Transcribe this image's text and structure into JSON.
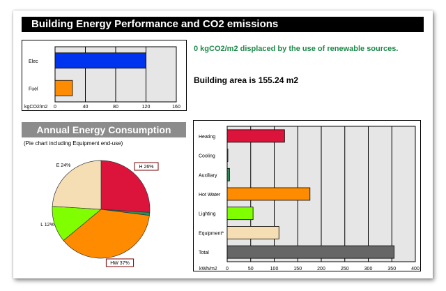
{
  "title": "Building Energy Performance and CO2 emissions",
  "renewable_text": "0 kgCO2/m2 displaced by the use of renewable sources.",
  "area_text": "Building area is 155.24 m2",
  "section_title": "Annual Energy Consumption",
  "pie_note": "(Pie chart including Equipment end-use)",
  "chart_data": [
    {
      "type": "bar",
      "orientation": "horizontal",
      "categories": [
        "Elec",
        "Fuel"
      ],
      "values": [
        120,
        23
      ],
      "colors": [
        "#0033ee",
        "#ff8c00"
      ],
      "xlabel": "kgCO2/m2",
      "xlim": [
        0,
        160
      ],
      "ticks": [
        "0",
        "40",
        "80",
        "120",
        "160"
      ],
      "tick_values": [
        0,
        40,
        80,
        120,
        160
      ],
      "grid": true
    },
    {
      "type": "bar",
      "orientation": "horizontal",
      "categories": [
        "Heating",
        "Cooling",
        "Auxiliary",
        "Hot Water",
        "Lighting",
        "Equipment*",
        "Total"
      ],
      "values": [
        122,
        0,
        5,
        176,
        55,
        110,
        355
      ],
      "colors": [
        "#dc143c",
        "#a6c8e8",
        "#2e8b57",
        "#ff8c00",
        "#7fff00",
        "#f5deb3",
        "#666666"
      ],
      "xlabel": "kWh/m2",
      "xlim": [
        0,
        400
      ],
      "ticks": [
        "0",
        "50",
        "100",
        "150",
        "200",
        "250",
        "300",
        "350",
        "400"
      ],
      "tick_values": [
        0,
        50,
        100,
        150,
        200,
        250,
        300,
        350,
        400
      ],
      "grid": true
    },
    {
      "type": "pie",
      "slices": [
        {
          "name": "Heating",
          "label": "H 26%",
          "value": 26,
          "color": "#dc143c",
          "boxed": true
        },
        {
          "name": "Auxiliary",
          "label": "",
          "value": 1,
          "color": "#2e8b57",
          "boxed": false
        },
        {
          "name": "Hot Water",
          "label": "HW 37%",
          "value": 37,
          "color": "#ff8c00",
          "boxed": true
        },
        {
          "name": "Lighting",
          "label": "L 12%",
          "value": 12,
          "color": "#7fff00",
          "boxed": false
        },
        {
          "name": "Equipment",
          "label": "E 24%",
          "value": 24,
          "color": "#f5deb3",
          "boxed": false
        }
      ]
    }
  ]
}
